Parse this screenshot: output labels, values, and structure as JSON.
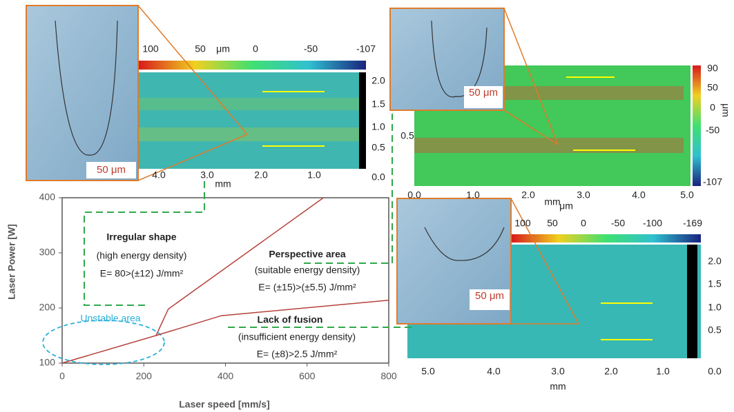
{
  "chart_data": {
    "type": "line",
    "xlabel": "Laser speed [mm/s]",
    "ylabel": "Laser Power [W]",
    "xlim": [
      0,
      800
    ],
    "ylim": [
      100,
      400
    ],
    "xticks": [
      0,
      200,
      400,
      600,
      800
    ],
    "yticks": [
      100,
      200,
      300,
      400
    ],
    "series": [
      {
        "color": "#b5403a",
        "x": [
          0,
          230,
          260,
          640
        ],
        "values": [
          100,
          150,
          198,
          400
        ]
      },
      {
        "color": "#b5403a",
        "x": [
          230,
          390,
          800
        ],
        "values": [
          150,
          186,
          214
        ]
      }
    ],
    "annotations": {
      "irregular": [
        "Irregular shape",
        "(high energy density)",
        "E= 80>(±12) J/mm²"
      ],
      "perspective": [
        "Perspective area",
        "(suitable energy density)",
        "E= (±15)>(±5.5) J/mm²"
      ],
      "lack": [
        "Lack of fusion",
        "(insufficient energy density)",
        "E= (±8)>2.5 J/mm²"
      ],
      "unstable": "Unstable area"
    }
  },
  "insets": [
    {
      "scale_bar": "50 μm",
      "unit": "μm",
      "colorbar_ticks": [
        "100",
        "50",
        "0",
        "-50",
        "-107"
      ],
      "side_ticks": [
        "2.0",
        "1.5",
        "1.0",
        "0.5",
        "0.0"
      ],
      "bottom_ticks": [
        "4.0",
        "3.0",
        "2.0",
        "1.0"
      ],
      "axis_unit": "mm"
    },
    {
      "scale_bar": "50 μm",
      "unit": "μm",
      "colorbar_ticks": [
        "90",
        "50",
        "0",
        "-50",
        "-107"
      ],
      "side_ticks": [
        "0.5"
      ],
      "bottom_ticks": [
        "0.0",
        "1.0",
        "2.0",
        "3.0",
        "4.0",
        "5.0"
      ],
      "axis_unit": "mm"
    },
    {
      "scale_bar": "50 μm",
      "unit": "μm",
      "colorbar_ticks": [
        "100",
        "50",
        "0",
        "-50",
        "-100",
        "-169"
      ],
      "side_ticks": [
        "2.0",
        "1.5",
        "1.0",
        "0.5",
        "0.0"
      ],
      "bottom_ticks": [
        "5.0",
        "4.0",
        "3.0",
        "2.0",
        "1.0"
      ],
      "axis_unit": "mm"
    }
  ]
}
